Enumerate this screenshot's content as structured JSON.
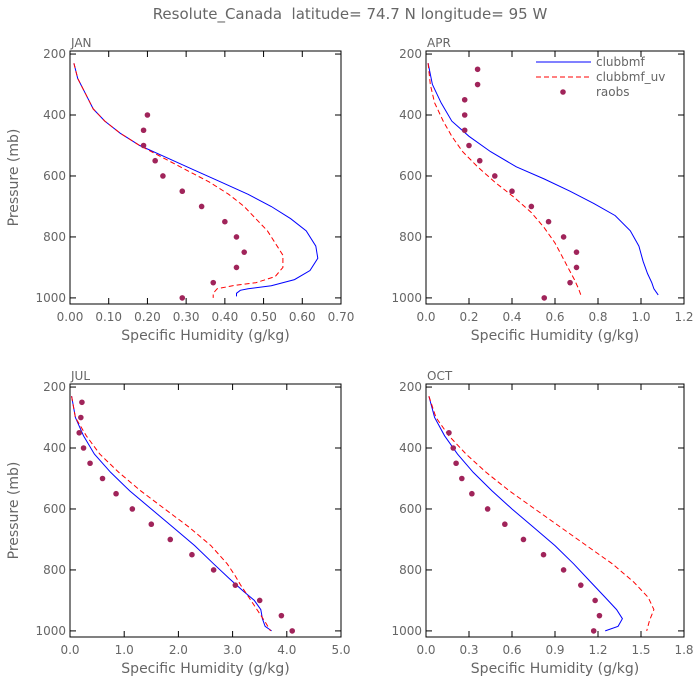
{
  "page": {
    "title": "Resolute_Canada  latitude= 74.7 N longitude= 95 W"
  },
  "styles": {
    "clubbmf_color": "#0000ff",
    "clubbmf_uv_color": "#ff0000",
    "raobs_color": "#a0245a",
    "text_color": "#666666"
  },
  "chart_data": [
    {
      "type": "line",
      "panel": "JAN",
      "xlabel": "Specific Humidity (g/kg)",
      "ylabel": "Pressure (mb)",
      "xlim": [
        0,
        0.7
      ],
      "ylim": [
        1020,
        190
      ],
      "xticks": [
        0,
        0.1,
        0.2,
        0.3,
        0.4,
        0.5,
        0.6,
        0.7
      ],
      "xtick_labels": [
        "0.00",
        "0.10",
        "0.20",
        "0.30",
        "0.40",
        "0.50",
        "0.60",
        "0.70"
      ],
      "yticks": [
        200,
        400,
        600,
        800,
        1000
      ],
      "ytick_labels": [
        "200",
        "400",
        "600",
        "800",
        "1000"
      ],
      "series": [
        {
          "name": "clubbmf",
          "style": "solid",
          "x": [
            0.01,
            0.02,
            0.04,
            0.06,
            0.09,
            0.13,
            0.18,
            0.25,
            0.32,
            0.39,
            0.46,
            0.52,
            0.57,
            0.61,
            0.635,
            0.64,
            0.62,
            0.58,
            0.52,
            0.46,
            0.44,
            0.43,
            0.43
          ],
          "y": [
            230,
            280,
            330,
            380,
            420,
            460,
            500,
            540,
            580,
            620,
            660,
            700,
            740,
            780,
            830,
            870,
            910,
            940,
            960,
            970,
            975,
            985,
            995
          ]
        },
        {
          "name": "clubbmf_uv",
          "style": "dashed",
          "x": [
            0.01,
            0.02,
            0.04,
            0.06,
            0.09,
            0.13,
            0.18,
            0.24,
            0.3,
            0.36,
            0.41,
            0.45,
            0.48,
            0.51,
            0.53,
            0.55,
            0.55,
            0.53,
            0.48,
            0.42,
            0.38,
            0.37,
            0.37
          ],
          "y": [
            230,
            280,
            330,
            380,
            420,
            460,
            500,
            540,
            580,
            620,
            660,
            700,
            740,
            780,
            820,
            860,
            900,
            930,
            950,
            960,
            970,
            985,
            1000
          ]
        },
        {
          "name": "raobs",
          "style": "dots",
          "x": [
            0.2,
            0.19,
            0.19,
            0.22,
            0.24,
            0.29,
            0.34,
            0.4,
            0.43,
            0.45,
            0.43,
            0.37,
            0.29
          ],
          "y": [
            400,
            450,
            500,
            550,
            600,
            650,
            700,
            750,
            800,
            850,
            900,
            950,
            1000
          ]
        }
      ]
    },
    {
      "type": "line",
      "panel": "APR",
      "xlabel": "Specific Humidity (g/kg)",
      "ylabel": "",
      "xlim": [
        0,
        1.2
      ],
      "ylim": [
        1020,
        190
      ],
      "xticks": [
        0,
        0.2,
        0.4,
        0.6,
        0.8,
        1.0,
        1.2
      ],
      "xtick_labels": [
        "0.0",
        "0.2",
        "0.4",
        "0.6",
        "0.8",
        "1.0",
        "1.2"
      ],
      "yticks": [
        200,
        400,
        600,
        800,
        1000
      ],
      "ytick_labels": [
        "200",
        "400",
        "600",
        "800",
        "1000"
      ],
      "legend": {
        "position": "top-right",
        "entries": [
          "clubbmf",
          "clubbmf_uv",
          "raobs"
        ]
      },
      "series": [
        {
          "name": "clubbmf",
          "style": "solid",
          "x": [
            0.01,
            0.03,
            0.07,
            0.12,
            0.2,
            0.3,
            0.42,
            0.55,
            0.67,
            0.78,
            0.88,
            0.95,
            0.99,
            1.01,
            1.03,
            1.05,
            1.06,
            1.08
          ],
          "y": [
            230,
            300,
            360,
            420,
            470,
            520,
            570,
            610,
            650,
            690,
            730,
            780,
            830,
            880,
            920,
            950,
            970,
            990
          ]
        },
        {
          "name": "clubbmf_uv",
          "style": "dashed",
          "x": [
            0.01,
            0.02,
            0.04,
            0.08,
            0.12,
            0.17,
            0.24,
            0.32,
            0.41,
            0.49,
            0.55,
            0.6,
            0.63,
            0.66,
            0.69,
            0.71,
            0.72
          ],
          "y": [
            230,
            300,
            360,
            420,
            470,
            520,
            570,
            620,
            670,
            720,
            770,
            820,
            860,
            900,
            940,
            970,
            990
          ]
        },
        {
          "name": "raobs",
          "style": "dots",
          "x": [
            0.24,
            0.24,
            0.18,
            0.18,
            0.18,
            0.2,
            0.25,
            0.32,
            0.4,
            0.49,
            0.57,
            0.64,
            0.7,
            0.7,
            0.67,
            0.55
          ],
          "y": [
            250,
            300,
            350,
            400,
            450,
            500,
            550,
            600,
            650,
            700,
            750,
            800,
            850,
            900,
            950,
            1000
          ]
        }
      ]
    },
    {
      "type": "line",
      "panel": "JUL",
      "xlabel": "Specific Humidity (g/kg)",
      "ylabel": "Pressure (mb)",
      "xlim": [
        0,
        5
      ],
      "ylim": [
        1020,
        190
      ],
      "xticks": [
        0,
        1,
        2,
        3,
        4,
        5
      ],
      "xtick_labels": [
        "0.0",
        "1.0",
        "2.0",
        "3.0",
        "4.0",
        "5.0"
      ],
      "yticks": [
        200,
        400,
        600,
        800,
        1000
      ],
      "ytick_labels": [
        "200",
        "400",
        "600",
        "800",
        "1000"
      ],
      "series": [
        {
          "name": "clubbmf",
          "style": "solid",
          "x": [
            0.03,
            0.1,
            0.25,
            0.45,
            0.75,
            1.1,
            1.5,
            1.9,
            2.3,
            2.65,
            2.95,
            3.2,
            3.4,
            3.52,
            3.55,
            3.6,
            3.72
          ],
          "y": [
            230,
            300,
            360,
            420,
            480,
            540,
            600,
            660,
            720,
            780,
            830,
            870,
            900,
            930,
            960,
            985,
            1000
          ]
        },
        {
          "name": "clubbmf_uv",
          "style": "dashed",
          "x": [
            0.03,
            0.1,
            0.3,
            0.55,
            0.9,
            1.3,
            1.75,
            2.2,
            2.6,
            2.9,
            3.05,
            3.15,
            3.3,
            3.45,
            3.6,
            3.7
          ],
          "y": [
            230,
            300,
            360,
            420,
            480,
            540,
            600,
            660,
            720,
            780,
            820,
            850,
            890,
            930,
            970,
            1000
          ]
        },
        {
          "name": "raobs",
          "style": "dots",
          "x": [
            0.22,
            0.2,
            0.17,
            0.25,
            0.37,
            0.6,
            0.85,
            1.15,
            1.5,
            1.85,
            2.25,
            2.65,
            3.05,
            3.5,
            3.9,
            4.1
          ],
          "y": [
            250,
            300,
            350,
            400,
            450,
            500,
            550,
            600,
            650,
            700,
            750,
            800,
            850,
            900,
            950,
            1000
          ]
        }
      ]
    },
    {
      "type": "line",
      "panel": "OCT",
      "xlabel": "Specific Humidity (g/kg)",
      "ylabel": "",
      "xlim": [
        0,
        1.8
      ],
      "ylim": [
        1020,
        190
      ],
      "xticks": [
        0,
        0.3,
        0.6,
        0.9,
        1.2,
        1.5,
        1.8
      ],
      "xtick_labels": [
        "0.0",
        "0.3",
        "0.6",
        "0.9",
        "1.2",
        "1.5",
        "1.8"
      ],
      "yticks": [
        200,
        400,
        600,
        800,
        1000
      ],
      "ytick_labels": [
        "200",
        "400",
        "600",
        "800",
        "1000"
      ],
      "series": [
        {
          "name": "clubbmf",
          "style": "solid",
          "x": [
            0.02,
            0.06,
            0.13,
            0.22,
            0.33,
            0.46,
            0.6,
            0.75,
            0.9,
            1.03,
            1.15,
            1.25,
            1.33,
            1.37,
            1.34,
            1.25
          ],
          "y": [
            230,
            300,
            360,
            420,
            480,
            540,
            600,
            660,
            720,
            780,
            840,
            890,
            930,
            960,
            985,
            1000
          ]
        },
        {
          "name": "clubbmf_uv",
          "style": "dashed",
          "x": [
            0.02,
            0.07,
            0.16,
            0.28,
            0.42,
            0.58,
            0.76,
            0.94,
            1.12,
            1.3,
            1.45,
            1.55,
            1.59,
            1.56,
            1.54
          ],
          "y": [
            230,
            300,
            360,
            420,
            480,
            540,
            600,
            660,
            720,
            780,
            840,
            890,
            930,
            965,
            1000
          ]
        },
        {
          "name": "raobs",
          "style": "dots",
          "x": [
            0.16,
            0.19,
            0.21,
            0.25,
            0.32,
            0.43,
            0.55,
            0.68,
            0.82,
            0.96,
            1.08,
            1.18,
            1.21,
            1.17
          ],
          "y": [
            350,
            400,
            450,
            500,
            550,
            600,
            650,
            700,
            750,
            800,
            850,
            900,
            950,
            1000
          ]
        }
      ]
    }
  ]
}
